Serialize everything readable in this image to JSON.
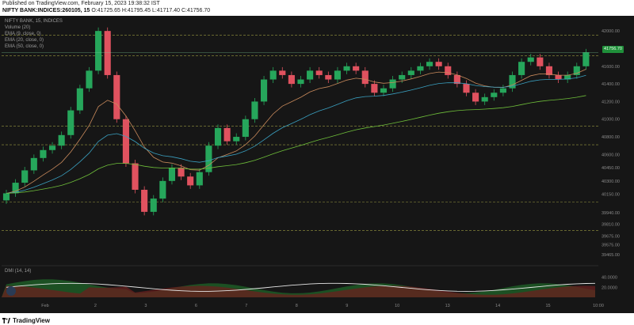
{
  "header": {
    "published": "Published on TradingView.com, February 15, 2023 19:38:32 IST",
    "symbol": "NIFTY BANK:INDICES:260105, 15",
    "ohlc": "O:41725.65 H:41795.45 L:41717.40 C:41756.70"
  },
  "legend": [
    "NIFTY BANK, 15, INDICES",
    "Volume (20)",
    "EMA (9, close, 0)",
    "EMA (20, close, 0)",
    "EMA (50, close, 0)"
  ],
  "dmi_label": "DMI (14, 14)",
  "brand": "TradingView",
  "current_price": "41756.70",
  "colors": {
    "up": "#26a65b",
    "down": "#e0525f",
    "ema9": "#c98a5c",
    "ema20": "#3aa0c0",
    "ema50": "#6fbf3a",
    "grid": "#b9b94a",
    "bg": "#161616"
  },
  "chart_data": {
    "type": "candlestick",
    "interval": "15",
    "ylim": [
      39465,
      42100
    ],
    "y_ticks": [
      42000.0,
      41600.0,
      41400.0,
      41200.0,
      41000.0,
      40800.0,
      40600.0,
      40450.0,
      40300.0,
      40150.0,
      39940.0,
      39810.0,
      39675.0,
      39575.0,
      39465.0
    ],
    "y_tick_labels": [
      "42000.00",
      "41600.00",
      "41400.00",
      "41200.00",
      "41000.00",
      "40800.00",
      "40600.00",
      "40450.00",
      "40300.00",
      "40150.00",
      "39940.00",
      "39810.00",
      "39675.00",
      "39575.00",
      "39465.00"
    ],
    "horizontal_levels": [
      41950,
      41720,
      40920,
      40710,
      40060,
      39740
    ],
    "x_labels": [
      "Feb",
      "2",
      "3",
      "6",
      "7",
      "8",
      "9",
      "10",
      "13",
      "14",
      "15",
      "10:00"
    ],
    "dmi_ticks": [
      "40.0000",
      "20.0000"
    ],
    "dmi_range": [
      0,
      60
    ],
    "last_price": 41756.7,
    "approx_closes": [
      40160,
      40280,
      40420,
      40560,
      40650,
      40700,
      40820,
      41100,
      41350,
      41550,
      42000,
      41500,
      41000,
      40500,
      40200,
      39950,
      40100,
      40300,
      40450,
      40350,
      40250,
      40400,
      40700,
      40900,
      40750,
      40800,
      41000,
      41200,
      41450,
      41550,
      41500,
      41400,
      41450,
      41550,
      41500,
      41450,
      41550,
      41600,
      41550,
      41400,
      41300,
      41350,
      41450,
      41500,
      41550,
      41600,
      41650,
      41600,
      41500,
      41400,
      41300,
      41200,
      41250,
      41300,
      41350,
      41500,
      41650,
      41700,
      41600,
      41500,
      41450,
      41500,
      41600,
      41756.7
    ]
  }
}
